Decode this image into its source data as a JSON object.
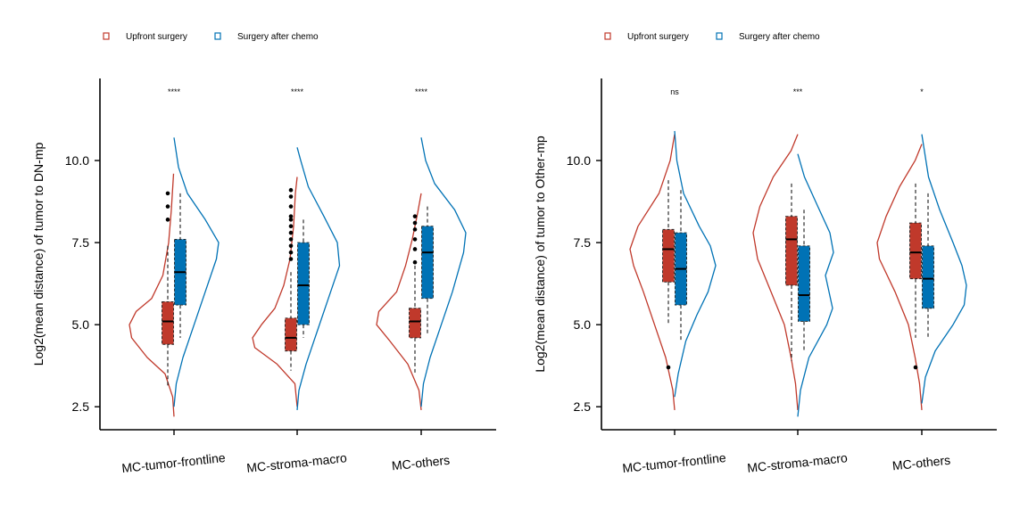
{
  "colors": {
    "upfront": "#C0392B",
    "chemo": "#0072B5",
    "axis": "#000000"
  },
  "chart_data": [
    {
      "type": "violin-box",
      "ylabel": "Log2(mean distance) of tumor to DN-mp",
      "ylim": [
        1.8,
        12.5
      ],
      "yticks": [
        "2.5",
        "5.0",
        "7.5",
        "10.0"
      ],
      "categories": [
        "MC-tumor-frontline",
        "MC-stroma-macro",
        "MC-others"
      ],
      "significance": [
        "****",
        "****",
        "****"
      ],
      "legend": {
        "position": "top-left",
        "entries": [
          "Upfront surgery",
          "Surgery after chemo"
        ]
      },
      "series": [
        {
          "name": "Upfront surgery",
          "violins": [
            [
              [
                2.2,
                0
              ],
              [
                2.8,
                0.03
              ],
              [
                3.5,
                0.2
              ],
              [
                4.0,
                0.6
              ],
              [
                4.6,
                0.95
              ],
              [
                5.0,
                1
              ],
              [
                5.4,
                0.85
              ],
              [
                5.8,
                0.5
              ],
              [
                6.5,
                0.25
              ],
              [
                7.5,
                0.12
              ],
              [
                8.5,
                0.06
              ],
              [
                9.6,
                0.01
              ]
            ],
            [
              [
                2.5,
                0
              ],
              [
                3.2,
                0.05
              ],
              [
                3.8,
                0.45
              ],
              [
                4.3,
                0.95
              ],
              [
                4.6,
                1
              ],
              [
                5.0,
                0.8
              ],
              [
                5.5,
                0.5
              ],
              [
                6.2,
                0.3
              ],
              [
                7.0,
                0.16
              ],
              [
                8.0,
                0.08
              ],
              [
                9.0,
                0.04
              ],
              [
                9.5,
                0
              ]
            ],
            [
              [
                2.4,
                0
              ],
              [
                3.0,
                0.05
              ],
              [
                3.8,
                0.3
              ],
              [
                4.5,
                0.7
              ],
              [
                5.0,
                1
              ],
              [
                5.4,
                0.95
              ],
              [
                6.0,
                0.55
              ],
              [
                6.8,
                0.35
              ],
              [
                7.6,
                0.2
              ],
              [
                8.4,
                0.08
              ],
              [
                9.0,
                0
              ]
            ]
          ],
          "boxes": [
            {
              "min": 3.1,
              "q1": 4.4,
              "median": 5.1,
              "q3": 5.7,
              "max": 7.4,
              "outliers": [
                8.2,
                8.6,
                9.0
              ]
            },
            {
              "min": 3.6,
              "q1": 4.2,
              "median": 4.6,
              "q3": 5.2,
              "max": 6.6,
              "outliers": [
                7.0,
                7.2,
                7.4,
                7.6,
                7.8,
                8.0,
                8.2,
                8.3,
                8.6,
                8.9,
                9.1
              ]
            },
            {
              "min": 3.5,
              "q1": 4.6,
              "median": 5.1,
              "q3": 5.5,
              "max": 6.8,
              "outliers": [
                6.9,
                7.3,
                7.6,
                7.9,
                8.1,
                8.3
              ]
            }
          ]
        },
        {
          "name": "Surgery after chemo",
          "violins": [
            [
              [
                2.5,
                0
              ],
              [
                3.2,
                0.05
              ],
              [
                4.0,
                0.2
              ],
              [
                5.0,
                0.45
              ],
              [
                6.0,
                0.7
              ],
              [
                7.0,
                0.95
              ],
              [
                7.5,
                1
              ],
              [
                8.2,
                0.7
              ],
              [
                9.0,
                0.3
              ],
              [
                9.8,
                0.1
              ],
              [
                10.7,
                0
              ]
            ],
            [
              [
                2.4,
                0
              ],
              [
                3.0,
                0.04
              ],
              [
                3.8,
                0.2
              ],
              [
                4.8,
                0.45
              ],
              [
                5.8,
                0.7
              ],
              [
                6.8,
                0.95
              ],
              [
                7.5,
                0.9
              ],
              [
                8.3,
                0.6
              ],
              [
                9.2,
                0.25
              ],
              [
                10.0,
                0.08
              ],
              [
                10.4,
                0
              ]
            ],
            [
              [
                2.5,
                0
              ],
              [
                3.2,
                0.05
              ],
              [
                4.0,
                0.2
              ],
              [
                5.0,
                0.45
              ],
              [
                6.0,
                0.7
              ],
              [
                7.2,
                0.95
              ],
              [
                7.8,
                1
              ],
              [
                8.5,
                0.75
              ],
              [
                9.3,
                0.3
              ],
              [
                10.0,
                0.1
              ],
              [
                10.7,
                0
              ]
            ]
          ],
          "boxes": [
            {
              "min": 4.6,
              "q1": 5.6,
              "median": 6.6,
              "q3": 7.6,
              "max": 9.0,
              "outliers": []
            },
            {
              "min": 4.6,
              "q1": 5.0,
              "median": 6.2,
              "q3": 7.5,
              "max": 8.2,
              "outliers": []
            },
            {
              "min": 4.7,
              "q1": 5.8,
              "median": 7.2,
              "q3": 8.0,
              "max": 8.6,
              "outliers": []
            }
          ]
        }
      ]
    },
    {
      "type": "violin-box",
      "ylabel": "Log2(mean distance) of tumor to Other-mp",
      "ylim": [
        1.8,
        12.5
      ],
      "yticks": [
        "2.5",
        "5.0",
        "7.5",
        "10.0"
      ],
      "categories": [
        "MC-tumor-frontline",
        "MC-stroma-macro",
        "MC-others"
      ],
      "significance": [
        "ns",
        "***",
        "*"
      ],
      "legend": {
        "position": "top-left",
        "entries": [
          "Upfront surgery",
          "Surgery after chemo"
        ]
      },
      "series": [
        {
          "name": "Upfront surgery",
          "violins": [
            [
              [
                2.4,
                0
              ],
              [
                3.0,
                0.04
              ],
              [
                4.0,
                0.2
              ],
              [
                5.0,
                0.45
              ],
              [
                6.0,
                0.7
              ],
              [
                6.8,
                0.92
              ],
              [
                7.3,
                1
              ],
              [
                8.0,
                0.82
              ],
              [
                9.0,
                0.35
              ],
              [
                10.0,
                0.1
              ],
              [
                10.8,
                0
              ]
            ],
            [
              [
                2.4,
                0
              ],
              [
                3.2,
                0.05
              ],
              [
                4.0,
                0.15
              ],
              [
                5.0,
                0.3
              ],
              [
                6.0,
                0.6
              ],
              [
                7.0,
                0.9
              ],
              [
                7.8,
                1
              ],
              [
                8.6,
                0.85
              ],
              [
                9.5,
                0.55
              ],
              [
                10.3,
                0.15
              ],
              [
                10.8,
                0
              ]
            ],
            [
              [
                2.4,
                0
              ],
              [
                3.2,
                0.05
              ],
              [
                4.0,
                0.15
              ],
              [
                5.0,
                0.3
              ],
              [
                6.0,
                0.6
              ],
              [
                7.0,
                0.95
              ],
              [
                7.5,
                1
              ],
              [
                8.3,
                0.8
              ],
              [
                9.2,
                0.5
              ],
              [
                10.0,
                0.15
              ],
              [
                10.5,
                0
              ]
            ]
          ],
          "boxes": [
            {
              "min": 5.0,
              "q1": 6.3,
              "median": 7.3,
              "q3": 7.9,
              "max": 9.4,
              "outliers": [
                3.7
              ]
            },
            {
              "min": 3.9,
              "q1": 6.2,
              "median": 7.6,
              "q3": 8.3,
              "max": 9.3,
              "outliers": []
            },
            {
              "min": 4.6,
              "q1": 6.4,
              "median": 7.2,
              "q3": 8.1,
              "max": 9.3,
              "outliers": [
                3.7
              ]
            }
          ]
        },
        {
          "name": "Surgery after chemo",
          "violins": [
            [
              [
                2.8,
                0
              ],
              [
                3.5,
                0.08
              ],
              [
                4.5,
                0.25
              ],
              [
                5.3,
                0.5
              ],
              [
                6.0,
                0.75
              ],
              [
                6.8,
                0.92
              ],
              [
                7.4,
                0.8
              ],
              [
                8.0,
                0.55
              ],
              [
                9.0,
                0.2
              ],
              [
                10.0,
                0.05
              ],
              [
                10.9,
                0
              ]
            ],
            [
              [
                2.2,
                0
              ],
              [
                3.0,
                0.06
              ],
              [
                4.0,
                0.25
              ],
              [
                5.0,
                0.65
              ],
              [
                5.5,
                0.78
              ],
              [
                6.0,
                0.7
              ],
              [
                6.5,
                0.62
              ],
              [
                7.2,
                0.8
              ],
              [
                7.8,
                0.72
              ],
              [
                8.6,
                0.45
              ],
              [
                9.5,
                0.15
              ],
              [
                10.2,
                0
              ]
            ],
            [
              [
                2.6,
                0
              ],
              [
                3.4,
                0.08
              ],
              [
                4.2,
                0.3
              ],
              [
                5.0,
                0.7
              ],
              [
                5.6,
                0.95
              ],
              [
                6.2,
                1
              ],
              [
                6.8,
                0.9
              ],
              [
                7.5,
                0.7
              ],
              [
                8.5,
                0.4
              ],
              [
                9.5,
                0.15
              ],
              [
                10.8,
                0
              ]
            ]
          ],
          "boxes": [
            {
              "min": 4.5,
              "q1": 5.6,
              "median": 6.7,
              "q3": 7.8,
              "max": 9.1,
              "outliers": []
            },
            {
              "min": 4.2,
              "q1": 5.1,
              "median": 5.9,
              "q3": 7.4,
              "max": 8.5,
              "outliers": []
            },
            {
              "min": 4.6,
              "q1": 5.5,
              "median": 6.4,
              "q3": 7.4,
              "max": 9.0,
              "outliers": []
            }
          ]
        }
      ]
    }
  ]
}
